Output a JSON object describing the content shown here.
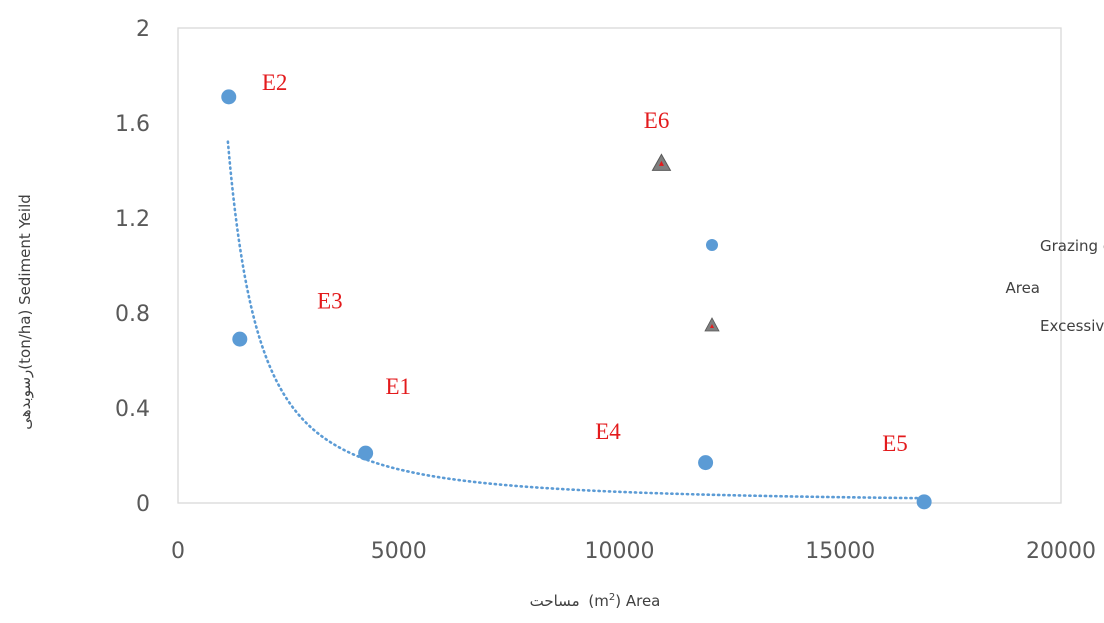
{
  "chart_data": {
    "type": "scatter",
    "xlim": [
      0,
      20000
    ],
    "ylim": [
      0,
      2
    ],
    "x_ticks": [
      0,
      5000,
      10000,
      15000,
      20000
    ],
    "y_ticks": [
      0,
      0.4,
      0.8,
      1.2,
      1.6,
      2
    ],
    "x_tick_labels": [
      "0",
      "5000",
      "10000",
      "15000",
      "20000"
    ],
    "y_tick_labels": [
      "0",
      "0.4",
      "0.8",
      "1.2",
      "1.6",
      "2"
    ],
    "xlabel": "مساحت (m²) Area",
    "ylabel": "رسوبدهی(ton/ha) Sediment Yeild",
    "grid": false,
    "legend_position": "right",
    "series": [
      {
        "name": "منطقه قرق شده– Grazing exclosure Area",
        "marker": "circle",
        "color": "#5b9bd5",
        "points": [
          {
            "label": "E2",
            "x": 1150,
            "y": 1.71
          },
          {
            "label": "E3",
            "x": 1400,
            "y": 0.69
          },
          {
            "label": "E1",
            "x": 4250,
            "y": 0.21
          },
          {
            "label": "E4",
            "x": 11950,
            "y": 0.17
          },
          {
            "label": "E5",
            "x": 16900,
            "y": 0.005
          }
        ]
      },
      {
        "name": "منطقه چرای آزاد–Excessive grazing",
        "marker": "triangle",
        "color": "#7f7f7f",
        "accent": "#e31a1c",
        "points": [
          {
            "label": "E6",
            "x": 10950,
            "y": 1.43
          }
        ]
      }
    ],
    "trendline": {
      "type": "power",
      "color": "#5b9bd5",
      "style": "dotted",
      "series": "منطقه قرق شده– Grazing exclosure Area"
    },
    "label_offsets": {
      "E2": [
        1900,
        1.74
      ],
      "E3": [
        3150,
        0.82
      ],
      "E1": [
        4700,
        0.46
      ],
      "E4": [
        9450,
        0.27
      ],
      "E5": [
        15950,
        0.22
      ],
      "E6": [
        10550,
        1.58
      ]
    },
    "legend": [
      {
        "line1": "منطقه قرق شده– Grazing exclosure",
        "line2": "Area"
      },
      {
        "line1": "منطقه چرای آزاد–Excessive grazing"
      }
    ]
  }
}
